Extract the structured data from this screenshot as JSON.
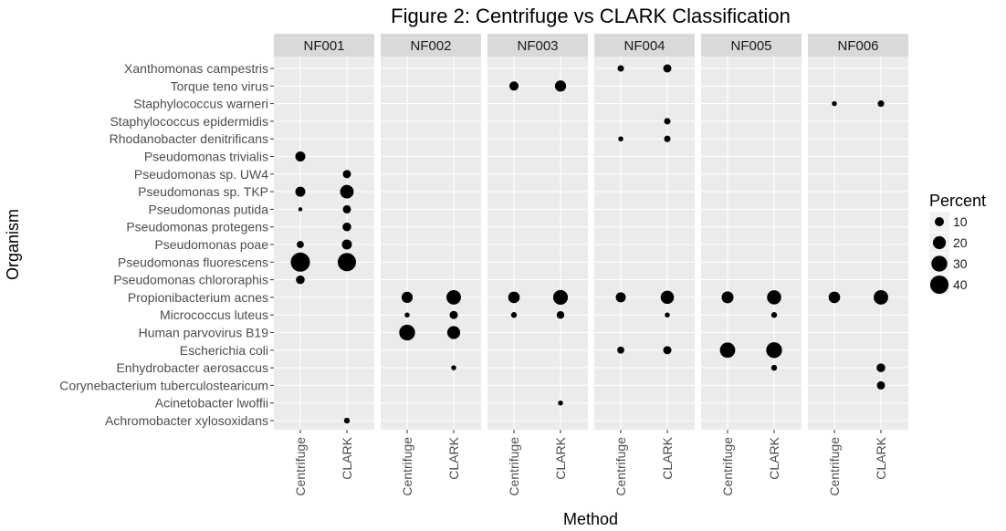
{
  "chart_data": {
    "type": "scatter",
    "title": "Figure 2: Centrifuge vs CLARK Classification",
    "xlabel": "Method",
    "ylabel": "Organism",
    "grid": true,
    "legend_position": "right",
    "methods": [
      "Centrifuge",
      "CLARK"
    ],
    "panels": [
      "NF001",
      "NF002",
      "NF003",
      "NF004",
      "NF005",
      "NF006"
    ],
    "organisms": [
      "Xanthomonas campestris",
      "Torque teno virus",
      "Staphylococcus warneri",
      "Staphylococcus epidermidis",
      "Rhodanobacter denitrificans",
      "Pseudomonas trivialis",
      "Pseudomonas sp. UW4",
      "Pseudomonas sp. TKP",
      "Pseudomonas putida",
      "Pseudomonas protegens",
      "Pseudomonas poae",
      "Pseudomonas fluorescens",
      "Pseudomonas chlororaphis",
      "Propionibacterium acnes",
      "Micrococcus luteus",
      "Human parvovirus B19",
      "Escherichia coli",
      "Enhydrobacter aerosaccus",
      "Corynebacterium tuberculostearicum",
      "Acinetobacter lwoffii",
      "Achromobacter xylosoxidans"
    ],
    "size_legend": {
      "title": "Percent",
      "values": [
        10,
        20,
        30,
        40
      ],
      "labels": [
        "10",
        "20",
        "30",
        "40"
      ]
    },
    "points": [
      {
        "panel": "NF001",
        "organism": "Pseudomonas trivialis",
        "method": "Centrifuge",
        "percent": 12
      },
      {
        "panel": "NF001",
        "organism": "Pseudomonas sp. UW4",
        "method": "CLARK",
        "percent": 8
      },
      {
        "panel": "NF001",
        "organism": "Pseudomonas sp. TKP",
        "method": "Centrifuge",
        "percent": 12
      },
      {
        "panel": "NF001",
        "organism": "Pseudomonas sp. TKP",
        "method": "CLARK",
        "percent": 22
      },
      {
        "panel": "NF001",
        "organism": "Pseudomonas putida",
        "method": "Centrifuge",
        "percent": 2
      },
      {
        "panel": "NF001",
        "organism": "Pseudomonas putida",
        "method": "CLARK",
        "percent": 8
      },
      {
        "panel": "NF001",
        "organism": "Pseudomonas protegens",
        "method": "CLARK",
        "percent": 9
      },
      {
        "panel": "NF001",
        "organism": "Pseudomonas poae",
        "method": "Centrifuge",
        "percent": 6
      },
      {
        "panel": "NF001",
        "organism": "Pseudomonas poae",
        "method": "CLARK",
        "percent": 12
      },
      {
        "panel": "NF001",
        "organism": "Pseudomonas fluorescens",
        "method": "Centrifuge",
        "percent": 44
      },
      {
        "panel": "NF001",
        "organism": "Pseudomonas fluorescens",
        "method": "CLARK",
        "percent": 40
      },
      {
        "panel": "NF001",
        "organism": "Pseudomonas chlororaphis",
        "method": "Centrifuge",
        "percent": 9
      },
      {
        "panel": "NF001",
        "organism": "Achromobacter xylosoxidans",
        "method": "CLARK",
        "percent": 4
      },
      {
        "panel": "NF002",
        "organism": "Propionibacterium acnes",
        "method": "Centrifuge",
        "percent": 15
      },
      {
        "panel": "NF002",
        "organism": "Propionibacterium acnes",
        "method": "CLARK",
        "percent": 25
      },
      {
        "panel": "NF002",
        "organism": "Micrococcus luteus",
        "method": "Centrifuge",
        "percent": 3
      },
      {
        "panel": "NF002",
        "organism": "Micrococcus luteus",
        "method": "CLARK",
        "percent": 8
      },
      {
        "panel": "NF002",
        "organism": "Human parvovirus B19",
        "method": "Centrifuge",
        "percent": 30
      },
      {
        "panel": "NF002",
        "organism": "Human parvovirus B19",
        "method": "CLARK",
        "percent": 20
      },
      {
        "panel": "NF002",
        "organism": "Enhydrobacter aerosaccus",
        "method": "CLARK",
        "percent": 3
      },
      {
        "panel": "NF003",
        "organism": "Torque teno virus",
        "method": "Centrifuge",
        "percent": 10
      },
      {
        "panel": "NF003",
        "organism": "Torque teno virus",
        "method": "CLARK",
        "percent": 15
      },
      {
        "panel": "NF003",
        "organism": "Propionibacterium acnes",
        "method": "Centrifuge",
        "percent": 16
      },
      {
        "panel": "NF003",
        "organism": "Propionibacterium acnes",
        "method": "CLARK",
        "percent": 26
      },
      {
        "panel": "NF003",
        "organism": "Micrococcus luteus",
        "method": "Centrifuge",
        "percent": 4
      },
      {
        "panel": "NF003",
        "organism": "Micrococcus luteus",
        "method": "CLARK",
        "percent": 7
      },
      {
        "panel": "NF003",
        "organism": "Acinetobacter lwoffii",
        "method": "CLARK",
        "percent": 3
      },
      {
        "panel": "NF004",
        "organism": "Xanthomonas campestris",
        "method": "Centrifuge",
        "percent": 5
      },
      {
        "panel": "NF004",
        "organism": "Xanthomonas campestris",
        "method": "CLARK",
        "percent": 8
      },
      {
        "panel": "NF004",
        "organism": "Staphylococcus epidermidis",
        "method": "CLARK",
        "percent": 5
      },
      {
        "panel": "NF004",
        "organism": "Rhodanobacter denitrificans",
        "method": "Centrifuge",
        "percent": 3
      },
      {
        "panel": "NF004",
        "organism": "Rhodanobacter denitrificans",
        "method": "CLARK",
        "percent": 5
      },
      {
        "panel": "NF004",
        "organism": "Propionibacterium acnes",
        "method": "Centrifuge",
        "percent": 12
      },
      {
        "panel": "NF004",
        "organism": "Propionibacterium acnes",
        "method": "CLARK",
        "percent": 21
      },
      {
        "panel": "NF004",
        "organism": "Micrococcus luteus",
        "method": "CLARK",
        "percent": 3
      },
      {
        "panel": "NF004",
        "organism": "Escherichia coli",
        "method": "Centrifuge",
        "percent": 6
      },
      {
        "panel": "NF004",
        "organism": "Escherichia coli",
        "method": "CLARK",
        "percent": 8
      },
      {
        "panel": "NF005",
        "organism": "Propionibacterium acnes",
        "method": "Centrifuge",
        "percent": 17
      },
      {
        "panel": "NF005",
        "organism": "Propionibacterium acnes",
        "method": "CLARK",
        "percent": 24
      },
      {
        "panel": "NF005",
        "organism": "Micrococcus luteus",
        "method": "CLARK",
        "percent": 4
      },
      {
        "panel": "NF005",
        "organism": "Escherichia coli",
        "method": "Centrifuge",
        "percent": 28
      },
      {
        "panel": "NF005",
        "organism": "Escherichia coli",
        "method": "CLARK",
        "percent": 30
      },
      {
        "panel": "NF005",
        "organism": "Enhydrobacter aerosaccus",
        "method": "CLARK",
        "percent": 4
      },
      {
        "panel": "NF006",
        "organism": "Staphylococcus warneri",
        "method": "Centrifuge",
        "percent": 3
      },
      {
        "panel": "NF006",
        "organism": "Staphylococcus warneri",
        "method": "CLARK",
        "percent": 5
      },
      {
        "panel": "NF006",
        "organism": "Propionibacterium acnes",
        "method": "Centrifuge",
        "percent": 16
      },
      {
        "panel": "NF006",
        "organism": "Propionibacterium acnes",
        "method": "CLARK",
        "percent": 25
      },
      {
        "panel": "NF006",
        "organism": "Enhydrobacter aerosaccus",
        "method": "CLARK",
        "percent": 9
      },
      {
        "panel": "NF006",
        "organism": "Corynebacterium tuberculostearicum",
        "method": "CLARK",
        "percent": 8
      }
    ]
  }
}
